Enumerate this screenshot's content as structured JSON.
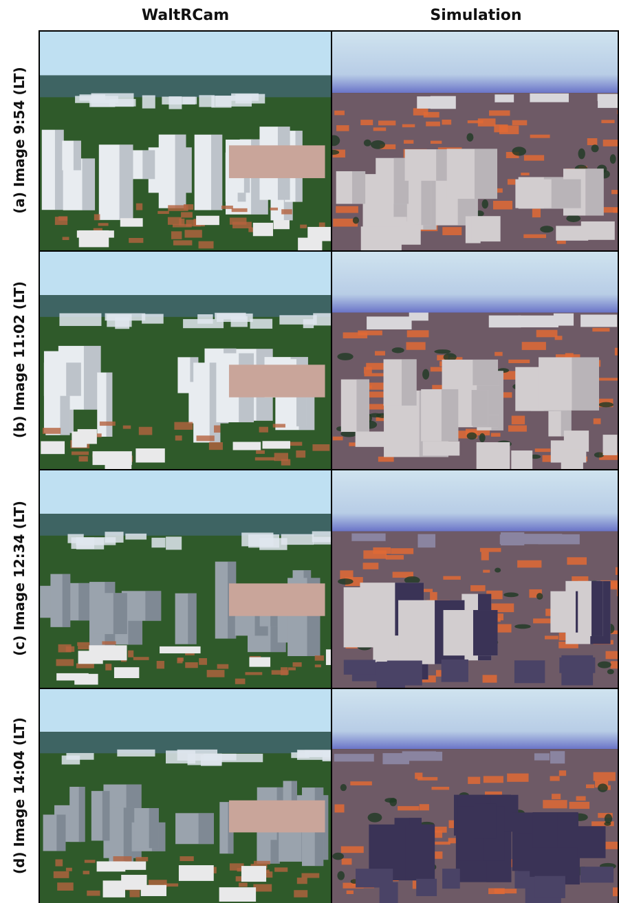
{
  "headers": {
    "left": "WaltRCam",
    "right": "Simulation"
  },
  "rows": [
    {
      "label": "(a) Image 9:54 (LT)"
    },
    {
      "label": "(b) Image 11:02 (LT)"
    },
    {
      "label": "(c) Image 12:34 (LT)"
    },
    {
      "label": "(d) Image 14:04 (LT)"
    }
  ],
  "colors": {
    "photo_sky": "#bfe0f2",
    "photo_vegetation": "#2f5a2a",
    "photo_buildings": "#e8ecf0",
    "photo_roofs": "#b4633e",
    "sim_sky": "#cfe3ef",
    "sim_horizon": "#6a74c8",
    "sim_ground": "#6e5a66",
    "sim_roofs": "#e06a35",
    "sim_buildings": "#d2cdcf",
    "sim_shadow": "#3a3356"
  }
}
